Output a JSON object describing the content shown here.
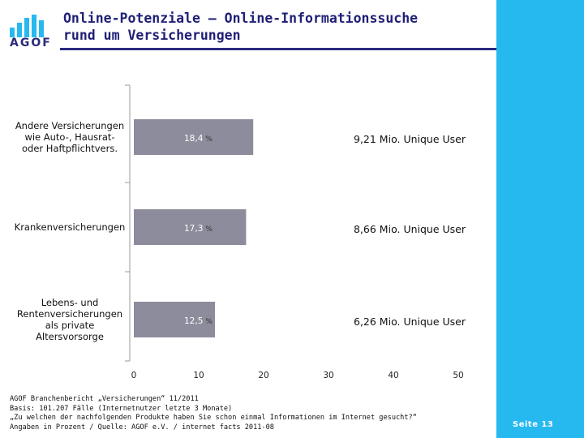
{
  "header": {
    "logo_text": "AGOF",
    "title_line1": "Online-Potenziale – Online-Informationssuche",
    "title_line2": "rund um Versicherungen"
  },
  "chart_data": {
    "type": "bar",
    "orientation": "horizontal",
    "categories": [
      [
        "Andere Versicherungen",
        "wie Auto-, Hausrat-",
        "oder Haftpflichtvers."
      ],
      [
        "Krankenversicherungen"
      ],
      [
        "Lebens- und",
        "Rentenversicherungen",
        "als private",
        "Altersvorsorge"
      ]
    ],
    "values": [
      18.4,
      17.3,
      12.5
    ],
    "value_labels": [
      "18,4",
      "17,3",
      "12,5"
    ],
    "unit": "%",
    "annotations": [
      "9,21 Mio. Unique User",
      "8,66 Mio. Unique User",
      "6,26 Mio. Unique User"
    ],
    "xlim": [
      0,
      50
    ],
    "xticks": [
      "0",
      "10",
      "20",
      "30",
      "40",
      "50"
    ],
    "grid": false,
    "bar_color": "#8c8c9c"
  },
  "footnote": [
    "AGOF Branchenbericht „Versicherungen“ 11/2011",
    "Basis: 101.207 Fälle (Internetnutzer letzte 3 Monate)",
    "„Zu welchen der nachfolgenden Produkte haben Sie schon einmal Informationen im Internet gesucht?“",
    "Angaben in Prozent / Quelle: AGOF e.V. / internet facts 2011-08"
  ],
  "sidebar": {
    "page_label": "Seite 13",
    "color": "#26b9f0"
  }
}
